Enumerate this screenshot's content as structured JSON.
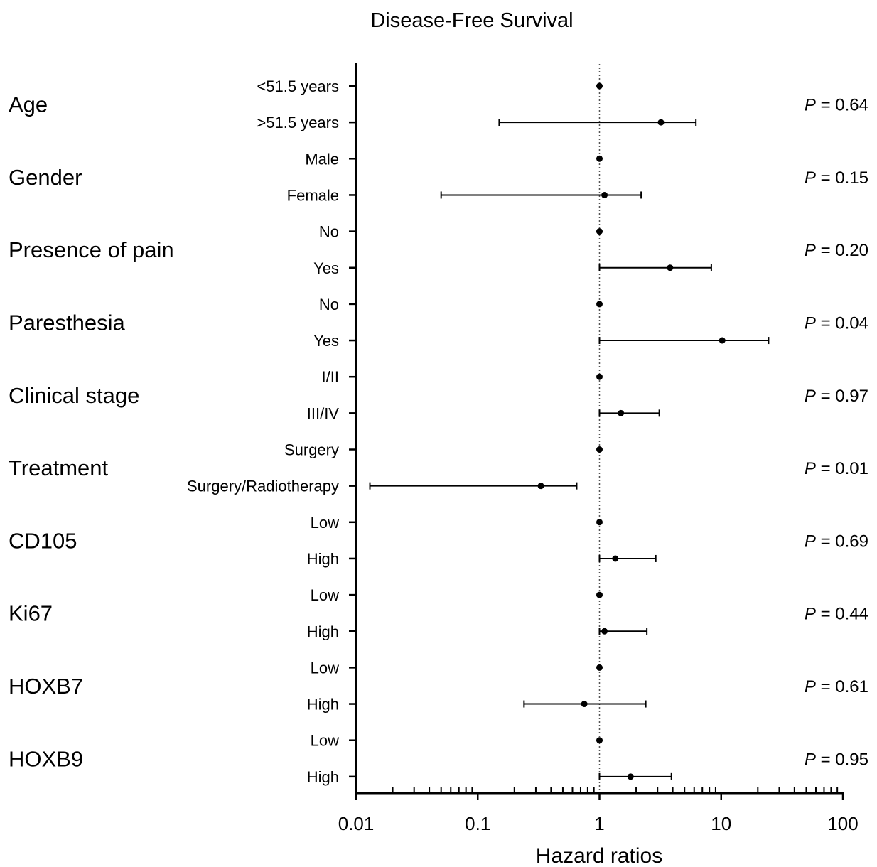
{
  "chart_data": {
    "type": "forest",
    "title": "Disease-Free Survival",
    "xlabel": "Hazard ratios",
    "x_scale": "log",
    "xlim": [
      0.01,
      100
    ],
    "x_ticks": [
      "0.01",
      "0.1",
      "1",
      "10",
      "100"
    ],
    "reference_line": 1,
    "p_prefix": "P",
    "groups": [
      {
        "name": "Age",
        "p_value": "= 0.64",
        "rows": [
          {
            "label": "<51.5 years",
            "hr": 1
          },
          {
            "label": ">51.5 years",
            "hr": 3.2,
            "ci": [
              0.15,
              6.2
            ]
          }
        ]
      },
      {
        "name": "Gender",
        "p_value": "= 0.15",
        "rows": [
          {
            "label": "Male",
            "hr": 1
          },
          {
            "label": "Female",
            "hr": 1.1,
            "ci": [
              0.05,
              2.2
            ]
          }
        ]
      },
      {
        "name": "Presence of pain",
        "p_value": "= 0.20",
        "rows": [
          {
            "label": "No",
            "hr": 1
          },
          {
            "label": "Yes",
            "hr": 3.8,
            "ci": [
              1.0,
              8.3
            ]
          }
        ]
      },
      {
        "name": "Paresthesia",
        "p_value": "= 0.04",
        "rows": [
          {
            "label": "No",
            "hr": 1
          },
          {
            "label": "Yes",
            "hr": 10.2,
            "ci": [
              1.0,
              24.5
            ]
          }
        ]
      },
      {
        "name": "Clinical stage",
        "p_value": "= 0.97",
        "rows": [
          {
            "label": "I/II",
            "hr": 1
          },
          {
            "label": "III/IV",
            "hr": 1.5,
            "ci": [
              1.0,
              3.1
            ]
          }
        ]
      },
      {
        "name": "Treatment",
        "p_value": "= 0.01",
        "rows": [
          {
            "label": "Surgery",
            "hr": 1
          },
          {
            "label": "Surgery/Radiotherapy",
            "hr": 0.33,
            "ci": [
              0.013,
              0.65
            ]
          }
        ]
      },
      {
        "name": "CD105",
        "p_value": "= 0.69",
        "rows": [
          {
            "label": "Low",
            "hr": 1
          },
          {
            "label": "High",
            "hr": 1.35,
            "ci": [
              1.0,
              2.9
            ]
          }
        ]
      },
      {
        "name": "Ki67",
        "p_value": "= 0.44",
        "rows": [
          {
            "label": "Low",
            "hr": 1
          },
          {
            "label": "High",
            "hr": 1.1,
            "ci": [
              1.0,
              2.45
            ]
          }
        ]
      },
      {
        "name": "HOXB7",
        "p_value": "= 0.61",
        "rows": [
          {
            "label": "Low",
            "hr": 1
          },
          {
            "label": "High",
            "hr": 0.75,
            "ci": [
              0.24,
              2.4
            ]
          }
        ]
      },
      {
        "name": "HOXB9",
        "p_value": "= 0.95",
        "rows": [
          {
            "label": "Low",
            "hr": 1
          },
          {
            "label": "High",
            "hr": 1.8,
            "ci": [
              1.0,
              3.9
            ]
          }
        ]
      }
    ]
  }
}
